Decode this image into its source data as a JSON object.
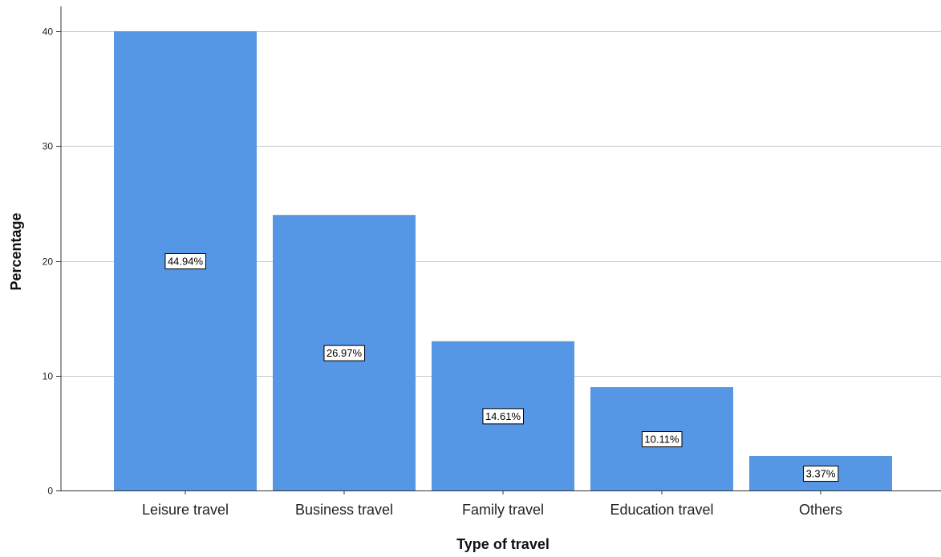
{
  "chart_data": {
    "type": "bar",
    "categories": [
      "Leisure travel",
      "Business travel",
      "Family travel",
      "Education travel",
      "Others"
    ],
    "values": [
      40,
      24,
      13,
      9,
      3
    ],
    "data_labels": [
      "44.94%",
      "26.97%",
      "14.61%",
      "10.11%",
      "3.37%"
    ],
    "yticks": [
      0,
      10,
      20,
      30,
      40
    ],
    "xlabel": "Type of travel",
    "ylabel": "Percentage",
    "ylim": [
      0,
      42
    ],
    "grid": "horizontal",
    "bar_color": "#5597e4"
  }
}
